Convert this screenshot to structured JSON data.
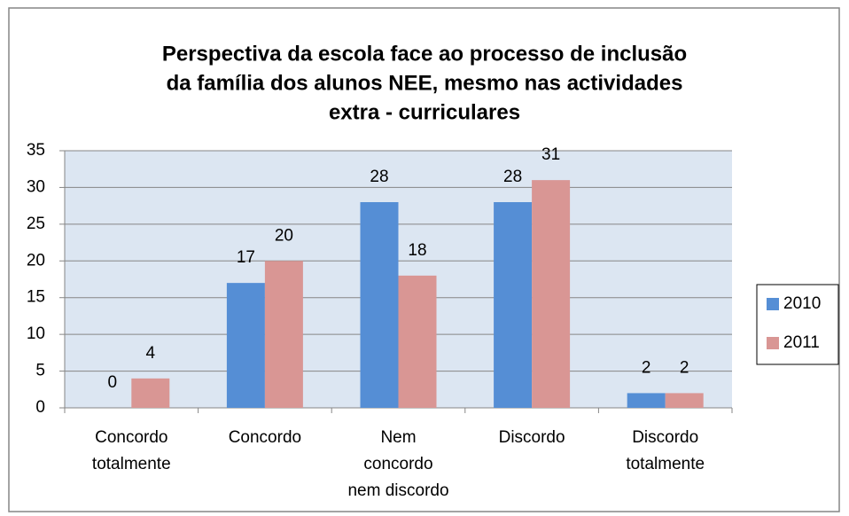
{
  "chart_data": {
    "type": "bar",
    "title": [
      "Perspectiva da escola face ao processo de inclusão",
      "da família dos alunos NEE, mesmo nas actividades",
      "extra - curriculares"
    ],
    "categories": [
      [
        "Concordo",
        "totalmente"
      ],
      [
        "Concordo"
      ],
      [
        "Nem",
        "concordo",
        "nem discordo"
      ],
      [
        "Discordo"
      ],
      [
        "Discordo",
        "totalmente"
      ]
    ],
    "series": [
      {
        "name": "2010",
        "color": "#558ed5",
        "values": [
          0,
          17,
          28,
          28,
          2
        ]
      },
      {
        "name": "2011",
        "color": "#d99694",
        "values": [
          4,
          20,
          18,
          31,
          2
        ]
      }
    ],
    "ylim": [
      0,
      35
    ],
    "yticks": [
      0,
      5,
      10,
      15,
      20,
      25,
      30,
      35
    ],
    "grid": true,
    "legend": "right"
  }
}
